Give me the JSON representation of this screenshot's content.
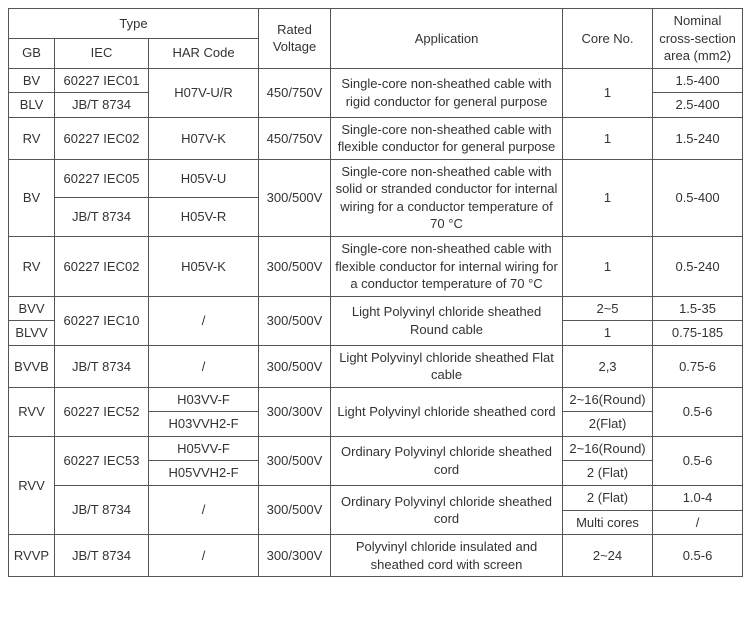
{
  "headers": {
    "type": "Type",
    "gb": "GB",
    "iec": "IEC",
    "har": "HAR Code",
    "voltage": "Rated Voltage",
    "application": "Application",
    "core": "Core No.",
    "area": "Nominal cross-section area (mm2)"
  },
  "r1": {
    "gb": "BV",
    "iec": "60227 IEC01",
    "har": "H07V-U/R",
    "volt": "450/750V",
    "app": "Single-core non-sheathed cable with rigid conductor for general purpose",
    "core": "1",
    "area": "1.5-400"
  },
  "r2": {
    "gb": "BLV",
    "iec": "JB/T 8734",
    "area": "2.5-400"
  },
  "r3": {
    "gb": "RV",
    "iec": "60227 IEC02",
    "har": "H07V-K",
    "volt": "450/750V",
    "app": "Single-core non-sheathed cable with flexible conductor for general purpose",
    "core": "1",
    "area": "1.5-240"
  },
  "r4": {
    "gb": "BV",
    "iec": "60227 IEC05",
    "har": "H05V-U",
    "volt": "300/500V",
    "app": "Single-core non-sheathed cable with solid or stranded conductor for internal wiring for a conductor temperature of 70 °C",
    "core": "1",
    "area": "0.5-400"
  },
  "r5": {
    "iec": "JB/T 8734",
    "har": "H05V-R"
  },
  "r6": {
    "gb": "RV",
    "iec": "60227 IEC02",
    "har": "H05V-K",
    "volt": "300/500V",
    "app": "Single-core non-sheathed cable with flexible conductor for internal wiring for a conductor temperature of 70 °C",
    "core": "1",
    "area": "0.5-240"
  },
  "r7": {
    "gb": "BVV",
    "iec": "60227 IEC10",
    "har": "/",
    "volt": "300/500V",
    "app": "Light Polyvinyl chloride sheathed Round cable",
    "core": "2~5",
    "area": "1.5-35"
  },
  "r8": {
    "gb": "BLVV",
    "core": "1",
    "area": "0.75-185"
  },
  "r9": {
    "gb": "BVVB",
    "iec": "JB/T 8734",
    "har": "/",
    "volt": "300/500V",
    "app": "Light Polyvinyl chloride sheathed Flat cable",
    "core": "2,3",
    "area": "0.75-6"
  },
  "r10": {
    "gb": "RVV",
    "iec": "60227 IEC52",
    "har": "H03VV-F",
    "volt": "300/300V",
    "app": "Light Polyvinyl chloride sheathed cord",
    "core": "2~16(Round)",
    "area": "0.5-6"
  },
  "r11": {
    "har": "H03VVH2-F",
    "core": "2(Flat)"
  },
  "r12": {
    "gb": "RVV",
    "iec": "60227 IEC53",
    "har": "H05VV-F",
    "volt": "300/500V",
    "app": "Ordinary Polyvinyl chloride sheathed cord",
    "core": "2~16(Round)",
    "area": "0.5-6"
  },
  "r13": {
    "har": "H05VVH2-F",
    "core": "2 (Flat)"
  },
  "r14": {
    "iec": "JB/T 8734",
    "har": "/",
    "volt": "300/500V",
    "app": "Ordinary Polyvinyl chloride sheathed cord",
    "core": "2 (Flat)",
    "area": "1.0-4"
  },
  "r15": {
    "core": "Multi cores",
    "area": "/"
  },
  "r16": {
    "gb": "RVVP",
    "iec": "JB/T 8734",
    "har": "/",
    "volt": "300/300V",
    "app": "Polyvinyl chloride insulated and sheathed cord with screen",
    "core": "2~24",
    "area": "0.5-6"
  }
}
